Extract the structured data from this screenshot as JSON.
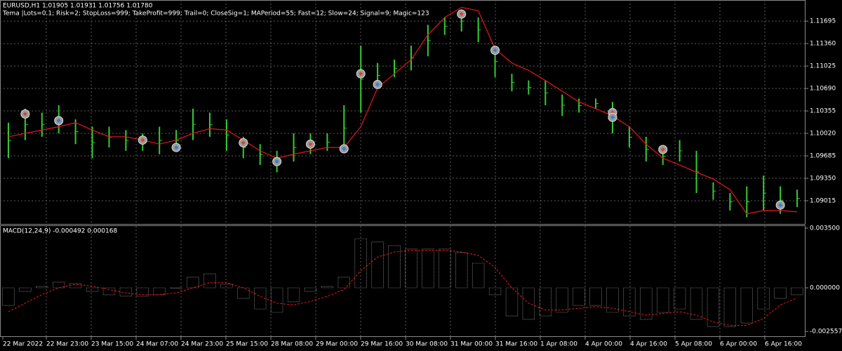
{
  "chart_data": [
    {
      "type": "ohlc",
      "title": "EURUSD,H1  1.01905 1.01931 1.01756 1.01780",
      "subtitle": "Tema |Lots=0.1; Risk=2; StopLoss=999; TakeProfit=999; Trail=0; CloseSig=1; MAPeriod=55; Fast=12; Slow=24; Signal=9; Magic=123",
      "color": "#33cc33",
      "high": [
        1.1018,
        1.1039,
        1.1033,
        1.1044,
        1.1023,
        1.1012,
        1.1012,
        1.1007,
        1.1002,
        1.1012,
        1.1007,
        1.1039,
        1.1033,
        1.1023,
        1.0997,
        1.0986,
        1.0976,
        1.1002,
        1.1002,
        1.1002,
        1.1044,
        1.1133,
        1.1107,
        1.1112,
        1.1133,
        1.1164,
        1.1175,
        1.1185,
        1.1175,
        1.1133,
        1.1091,
        1.1081,
        1.1081,
        1.106,
        1.1054,
        1.1054,
        1.1049,
        1.1012,
        1.0997,
        1.0981,
        1.0992,
        1.0976,
        1.0929,
        1.0913,
        1.0923,
        1.0939,
        1.0923,
        1.0918
      ],
      "low": [
        1.0965,
        1.0992,
        1.0997,
        1.1002,
        1.0986,
        1.0965,
        1.0981,
        1.0976,
        1.0976,
        1.0971,
        1.0976,
        1.0992,
        1.0997,
        1.0976,
        1.0965,
        1.0955,
        1.0944,
        1.096,
        1.0971,
        1.0976,
        1.0976,
        1.1033,
        1.107,
        1.1086,
        1.1096,
        1.1117,
        1.1149,
        1.1154,
        1.1138,
        1.1086,
        1.1065,
        1.106,
        1.1044,
        1.1028,
        1.1033,
        1.1039,
        1.1002,
        1.0981,
        1.096,
        1.0955,
        1.096,
        1.0913,
        1.0903,
        1.0887,
        1.0877,
        1.0887,
        1.0882,
        1.0892
      ],
      "line_color": "#e8161b",
      "line_values": [
        1.0997,
        1.1002,
        1.1007,
        1.1012,
        1.1018,
        1.1007,
        1.0997,
        1.0997,
        1.0992,
        1.0986,
        1.0992,
        1.1002,
        1.1009,
        1.1007,
        1.0992,
        1.0976,
        1.0965,
        1.0971,
        1.0976,
        1.0981,
        1.0981,
        1.1012,
        1.107,
        1.1091,
        1.1112,
        1.1149,
        1.1175,
        1.119,
        1.1185,
        1.1128,
        1.1107,
        1.1096,
        1.1081,
        1.1065,
        1.1049,
        1.1039,
        1.1028,
        1.1012,
        1.0986,
        1.0965,
        1.0955,
        1.0944,
        1.0934,
        1.0918,
        1.0882,
        1.0887,
        1.0887,
        1.0885
      ],
      "signals": [
        {
          "bar": 1,
          "price": 1.1031
        },
        {
          "bar": 3,
          "price": 1.1021
        },
        {
          "bar": 8,
          "price": 1.0992
        },
        {
          "bar": 10,
          "price": 1.0981
        },
        {
          "bar": 14,
          "price": 1.0988
        },
        {
          "bar": 16,
          "price": 1.096
        },
        {
          "bar": 18,
          "price": 1.0986
        },
        {
          "bar": 20,
          "price": 1.0979
        },
        {
          "bar": 21,
          "price": 1.1091
        },
        {
          "bar": 22,
          "price": 1.1075
        },
        {
          "bar": 27,
          "price": 1.118
        },
        {
          "bar": 29,
          "price": 1.1126
        },
        {
          "bar": 36,
          "price": 1.1033
        },
        {
          "bar": 36,
          "price": 1.1026
        },
        {
          "bar": 39,
          "price": 1.0978
        },
        {
          "bar": 46,
          "price": 1.0895
        }
      ],
      "ylim": [
        1.0868,
        1.1201
      ],
      "yticks": [
        1.11695,
        {
          "value": 1.1136,
          "label": "1.11360"
        },
        1.11025,
        {
          "value": 1.1069,
          "label": "1.10690"
        },
        1.10355,
        {
          "value": 1.1002,
          "label": "1.10020"
        },
        1.09685,
        {
          "value": 1.0935,
          "label": "1.09350"
        },
        1.09015
      ],
      "grid": true
    },
    {
      "type": "bar",
      "title": "MACD(12,24,9) -0.000492 0.000168",
      "color": "#c0c0c0",
      "values": [
        -0.00103,
        -0.00021,
        8e-05,
        0.00033,
        0.00025,
        -0.00021,
        -0.00041,
        -0.00049,
        -0.00049,
        -0.00041,
        0,
        0.00062,
        0.00082,
        0.00021,
        -0.00062,
        -0.00124,
        -0.00144,
        -0.00082,
        -0.00021,
        8e-05,
        0.00062,
        0.00288,
        0.00268,
        0.00247,
        0.00227,
        0.00227,
        0.00227,
        0.00206,
        0.00144,
        -0.00041,
        -0.00165,
        -0.00185,
        -0.00165,
        -0.00144,
        -0.00103,
        -0.00103,
        -0.00144,
        -0.00165,
        -0.00185,
        -0.00144,
        -0.00124,
        -0.00185,
        -0.00227,
        -0.00227,
        -0.00206,
        -0.00124,
        -0.00062,
        -0.00041
      ],
      "signal_color": "#e8161b",
      "signal": [
        -0.0014,
        -0.0009,
        -0.0004,
        0.0,
        0.0002,
        0.0001,
        -0.0001,
        -0.0003,
        -0.0004,
        -0.0004,
        -0.0003,
        0.0,
        0.0003,
        0.0003,
        0.0,
        -0.0005,
        -0.0009,
        -0.001,
        -0.0008,
        -0.0005,
        -0.0001,
        0.001,
        0.0018,
        0.0021,
        0.0022,
        0.0022,
        0.0022,
        0.0021,
        0.0019,
        0.0012,
        0.0,
        -0.0009,
        -0.0013,
        -0.0013,
        -0.0012,
        -0.0011,
        -0.0012,
        -0.0014,
        -0.0016,
        -0.0015,
        -0.0014,
        -0.0016,
        -0.002,
        -0.0022,
        -0.0022,
        -0.0018,
        -0.001,
        -0.0006
      ],
      "ylim": [
        -0.00288,
        0.00362
      ],
      "yticks": [
        {
          "value": 0.0035,
          "label": "0.003500"
        },
        {
          "value": 0,
          "label": "0.000000"
        },
        -0.002557
      ],
      "xlabels": [
        "22 Mar 2022",
        "22 Mar 23:00",
        "23 Mar 15:00",
        "24 Mar 07:00",
        "24 Mar 23:00",
        "25 Mar 15:00",
        "28 Mar 08:00",
        "29 Mar 00:00",
        "29 Mar 16:00",
        "30 Mar 08:00",
        "31 Mar 00:00",
        "31 Mar 16:00",
        "1 Apr 08:00",
        "4 Apr 00:00",
        "4 Apr 16:00",
        "5 Apr 08:00",
        "6 Apr 00:00",
        "6 Apr 16:00"
      ]
    }
  ]
}
